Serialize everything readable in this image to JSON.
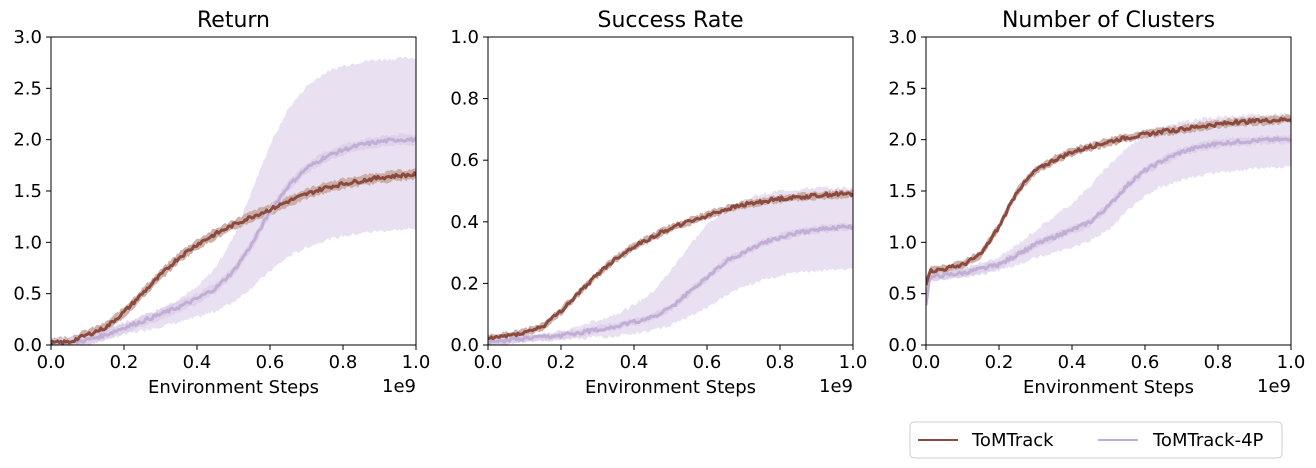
{
  "colors": {
    "tomtrack": "#8b4a3f",
    "tomtrack4p": "#c2aed4",
    "band4p_outer": "#e9e0f1",
    "band4p_inner": "#ddd0ea",
    "band_tt": "#c8a99f"
  },
  "legend": {
    "items": [
      "ToMTrack",
      "ToMTrack-4P"
    ]
  },
  "chart_data": [
    {
      "type": "line",
      "title": "Return",
      "xlabel": "Environment Steps",
      "x_offset_label": "1e9",
      "xlim": [
        0,
        1.0
      ],
      "ylim": [
        0,
        3.0
      ],
      "xticks": [
        "0.0",
        "0.2",
        "0.4",
        "0.6",
        "0.8",
        "1.0"
      ],
      "yticks": [
        "0.0",
        "0.5",
        "1.0",
        "1.5",
        "2.0",
        "2.5",
        "3.0"
      ],
      "x": [
        0,
        0.05,
        0.1,
        0.15,
        0.2,
        0.25,
        0.3,
        0.35,
        0.4,
        0.45,
        0.5,
        0.55,
        0.6,
        0.65,
        0.7,
        0.75,
        0.8,
        0.85,
        0.9,
        0.95,
        1.0
      ],
      "series": [
        {
          "name": "ToMTrack",
          "values": [
            0.02,
            0.03,
            0.1,
            0.17,
            0.32,
            0.5,
            0.68,
            0.85,
            0.98,
            1.08,
            1.17,
            1.25,
            1.32,
            1.4,
            1.47,
            1.53,
            1.57,
            1.6,
            1.63,
            1.65,
            1.66
          ],
          "band": 0.05
        },
        {
          "name": "ToMTrack-4P",
          "values": [
            0.01,
            0.02,
            0.05,
            0.1,
            0.17,
            0.23,
            0.3,
            0.37,
            0.45,
            0.55,
            0.72,
            0.98,
            1.3,
            1.55,
            1.72,
            1.83,
            1.9,
            1.95,
            1.98,
            2.0,
            2.0
          ],
          "band": 0.05,
          "upper": [
            0.02,
            0.03,
            0.07,
            0.13,
            0.2,
            0.27,
            0.36,
            0.45,
            0.56,
            0.75,
            1.05,
            1.5,
            1.95,
            2.3,
            2.52,
            2.65,
            2.72,
            2.76,
            2.78,
            2.79,
            2.8
          ],
          "lower": [
            0.0,
            0.01,
            0.03,
            0.06,
            0.1,
            0.14,
            0.18,
            0.22,
            0.27,
            0.33,
            0.42,
            0.56,
            0.72,
            0.86,
            0.95,
            1.02,
            1.06,
            1.09,
            1.11,
            1.12,
            1.13
          ]
        }
      ]
    },
    {
      "type": "line",
      "title": "Success Rate",
      "xlabel": "Environment Steps",
      "x_offset_label": "1e9",
      "xlim": [
        0,
        1.0
      ],
      "ylim": [
        0,
        1.0
      ],
      "xticks": [
        "0.0",
        "0.2",
        "0.4",
        "0.6",
        "0.8",
        "1.0"
      ],
      "yticks": [
        "0.0",
        "0.2",
        "0.4",
        "0.6",
        "0.8",
        "1.0"
      ],
      "x": [
        0,
        0.05,
        0.1,
        0.15,
        0.2,
        0.25,
        0.3,
        0.35,
        0.4,
        0.45,
        0.5,
        0.55,
        0.6,
        0.65,
        0.7,
        0.75,
        0.8,
        0.85,
        0.9,
        0.95,
        1.0
      ],
      "series": [
        {
          "name": "ToMTrack",
          "values": [
            0.02,
            0.03,
            0.04,
            0.06,
            0.11,
            0.17,
            0.23,
            0.28,
            0.32,
            0.35,
            0.38,
            0.4,
            0.42,
            0.44,
            0.455,
            0.465,
            0.475,
            0.48,
            0.485,
            0.49,
            0.49
          ],
          "band": 0.012
        },
        {
          "name": "ToMTrack-4P",
          "values": [
            0.01,
            0.015,
            0.02,
            0.025,
            0.03,
            0.04,
            0.05,
            0.06,
            0.075,
            0.09,
            0.12,
            0.17,
            0.22,
            0.27,
            0.3,
            0.33,
            0.35,
            0.365,
            0.375,
            0.38,
            0.385
          ],
          "band": 0.012,
          "upper": [
            0.015,
            0.02,
            0.03,
            0.035,
            0.045,
            0.06,
            0.08,
            0.1,
            0.13,
            0.17,
            0.24,
            0.32,
            0.39,
            0.44,
            0.47,
            0.49,
            0.5,
            0.505,
            0.51,
            0.51,
            0.51
          ],
          "lower": [
            0.005,
            0.008,
            0.01,
            0.012,
            0.016,
            0.02,
            0.025,
            0.03,
            0.038,
            0.048,
            0.065,
            0.09,
            0.12,
            0.16,
            0.19,
            0.21,
            0.225,
            0.235,
            0.24,
            0.245,
            0.25
          ]
        }
      ]
    },
    {
      "type": "line",
      "title": "Number of Clusters",
      "xlabel": "Environment Steps",
      "x_offset_label": "1e9",
      "xlim": [
        0,
        1.0
      ],
      "ylim": [
        0,
        3.0
      ],
      "xticks": [
        "0.0",
        "0.2",
        "0.4",
        "0.6",
        "0.8",
        "1.0"
      ],
      "yticks": [
        "0.0",
        "0.5",
        "1.0",
        "1.5",
        "2.0",
        "2.5",
        "3.0"
      ],
      "x": [
        0,
        0.01,
        0.05,
        0.1,
        0.15,
        0.2,
        0.25,
        0.3,
        0.35,
        0.4,
        0.45,
        0.5,
        0.55,
        0.6,
        0.65,
        0.7,
        0.75,
        0.8,
        0.85,
        0.9,
        0.95,
        1.0
      ],
      "series": [
        {
          "name": "ToMTrack",
          "values": [
            0.6,
            0.72,
            0.74,
            0.78,
            0.88,
            1.15,
            1.5,
            1.7,
            1.8,
            1.88,
            1.93,
            1.98,
            2.02,
            2.05,
            2.08,
            2.1,
            2.13,
            2.15,
            2.17,
            2.18,
            2.19,
            2.2
          ],
          "band": 0.04
        },
        {
          "name": "ToMTrack-4P",
          "values": [
            0.4,
            0.66,
            0.68,
            0.7,
            0.74,
            0.78,
            0.88,
            0.98,
            1.05,
            1.12,
            1.2,
            1.35,
            1.55,
            1.7,
            1.8,
            1.88,
            1.93,
            1.96,
            1.98,
            1.99,
            2.0,
            2.0
          ],
          "band": 0.04,
          "upper": [
            0.45,
            0.7,
            0.72,
            0.75,
            0.8,
            0.85,
            0.98,
            1.12,
            1.25,
            1.38,
            1.55,
            1.75,
            1.92,
            2.05,
            2.12,
            2.17,
            2.2,
            2.22,
            2.23,
            2.24,
            2.24,
            2.25
          ],
          "lower": [
            0.35,
            0.62,
            0.64,
            0.66,
            0.69,
            0.72,
            0.78,
            0.85,
            0.9,
            0.95,
            1.02,
            1.12,
            1.3,
            1.45,
            1.55,
            1.6,
            1.65,
            1.68,
            1.7,
            1.72,
            1.73,
            1.73
          ]
        }
      ]
    }
  ]
}
